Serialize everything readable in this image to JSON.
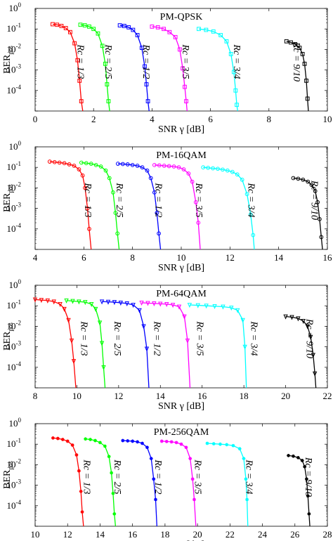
{
  "chart_data": [
    {
      "type": "line",
      "title": "PM-QPSK",
      "xlabel": "SNR γ [dB]",
      "ylabel": "BER",
      "ylabel_sub": "pos",
      "xlim": [
        0,
        10
      ],
      "ylim": [
        1e-05,
        1
      ],
      "yscale": "log",
      "xticks": [
        "0",
        "2",
        "4",
        "6",
        "8",
        "10"
      ],
      "marker": "square",
      "series": [
        {
          "name": "R_c = 1/3",
          "color": "#ff0000",
          "x": [
            0.6,
            0.75,
            0.9,
            1.05,
            1.2,
            1.35,
            1.45,
            1.52,
            1.58,
            1.63
          ],
          "y": [
            0.17,
            0.16,
            0.14,
            0.11,
            0.07,
            0.02,
            0.003,
            0.0003,
            3e-05,
            1e-05
          ]
        },
        {
          "name": "R_c = 2/5",
          "color": "#00ff00",
          "x": [
            1.55,
            1.7,
            1.85,
            2.0,
            2.15,
            2.3,
            2.4,
            2.46,
            2.51,
            2.55
          ],
          "y": [
            0.16,
            0.15,
            0.13,
            0.1,
            0.06,
            0.015,
            0.002,
            0.0002,
            3e-05,
            1e-05
          ]
        },
        {
          "name": "R_c = 1/2",
          "color": "#0000ff",
          "x": [
            2.9,
            3.05,
            3.2,
            3.35,
            3.5,
            3.65,
            3.75,
            3.81,
            3.86,
            3.9
          ],
          "y": [
            0.15,
            0.14,
            0.12,
            0.09,
            0.05,
            0.012,
            0.0015,
            0.0002,
            3e-05,
            1e-05
          ]
        },
        {
          "name": "R_c = 3/5",
          "color": "#ff00ff",
          "x": [
            4.0,
            4.2,
            4.4,
            4.6,
            4.8,
            4.95,
            5.05,
            5.12,
            5.17,
            5.2
          ],
          "y": [
            0.13,
            0.12,
            0.1,
            0.07,
            0.04,
            0.01,
            0.0012,
            0.00015,
            3e-05,
            1e-05
          ]
        },
        {
          "name": "R_c = 3/4",
          "color": "#00ffff",
          "x": [
            5.6,
            5.85,
            6.1,
            6.35,
            6.55,
            6.7,
            6.8,
            6.86,
            6.9,
            6.93
          ],
          "y": [
            0.1,
            0.09,
            0.075,
            0.05,
            0.025,
            0.006,
            0.0008,
            0.0001,
            2e-05,
            1e-05
          ]
        },
        {
          "name": "R_c = 9/10",
          "color": "#000000",
          "x": [
            8.6,
            8.75,
            8.9,
            9.05,
            9.15,
            9.22,
            9.28,
            9.32,
            9.35
          ],
          "y": [
            0.025,
            0.022,
            0.018,
            0.012,
            0.006,
            0.002,
            0.0003,
            4e-05,
            1e-05
          ]
        }
      ],
      "rate_labels": [
        "Rс = 1/3",
        "Rс = 2/5",
        "Rс = 1/2",
        "Rс = 3/5",
        "Rс = 3/4",
        "Rс = 9/10"
      ]
    },
    {
      "type": "line",
      "title": "PM-16QAM",
      "xlabel": "SNR γ [dB]",
      "ylabel": "BER",
      "ylabel_sub": "pos",
      "xlim": [
        4,
        16
      ],
      "ylim": [
        1e-05,
        1
      ],
      "yscale": "log",
      "xticks": [
        "4",
        "6",
        "8",
        "10",
        "12",
        "14",
        "16"
      ],
      "marker": "circle",
      "series": [
        {
          "name": "R_c = 1/3",
          "color": "#ff0000",
          "x": [
            4.6,
            4.8,
            5.0,
            5.2,
            5.4,
            5.6,
            5.8,
            5.95,
            6.05,
            6.15,
            6.22,
            6.3
          ],
          "y": [
            0.19,
            0.18,
            0.17,
            0.16,
            0.14,
            0.12,
            0.08,
            0.04,
            0.01,
            0.001,
            0.0001,
            1e-05
          ]
        },
        {
          "name": "R_c = 2/5",
          "color": "#00ff00",
          "x": [
            5.9,
            6.1,
            6.3,
            6.5,
            6.7,
            6.9,
            7.05,
            7.2,
            7.3,
            7.38,
            7.45
          ],
          "y": [
            0.17,
            0.16,
            0.15,
            0.13,
            0.11,
            0.07,
            0.03,
            0.006,
            0.0006,
            6e-05,
            1e-05
          ]
        },
        {
          "name": "R_c = 1/2",
          "color": "#0000ff",
          "x": [
            7.4,
            7.6,
            7.8,
            8.0,
            8.2,
            8.4,
            8.6,
            8.75,
            8.9,
            9.0,
            9.08,
            9.15
          ],
          "y": [
            0.15,
            0.145,
            0.14,
            0.13,
            0.12,
            0.1,
            0.07,
            0.03,
            0.006,
            0.0006,
            6e-05,
            1e-05
          ]
        },
        {
          "name": "R_c = 3/5",
          "color": "#ff00ff",
          "x": [
            8.9,
            9.1,
            9.3,
            9.5,
            9.7,
            9.9,
            10.1,
            10.3,
            10.45,
            10.6,
            10.7,
            10.78
          ],
          "y": [
            0.13,
            0.125,
            0.12,
            0.115,
            0.11,
            0.1,
            0.08,
            0.05,
            0.02,
            0.002,
            0.0002,
            1e-05
          ]
        },
        {
          "name": "R_c = 3/4",
          "color": "#00ffff",
          "x": [
            10.9,
            11.1,
            11.3,
            11.5,
            11.7,
            11.9,
            12.1,
            12.3,
            12.5,
            12.7,
            12.85,
            12.95,
            13.0
          ],
          "y": [
            0.1,
            0.095,
            0.09,
            0.085,
            0.078,
            0.07,
            0.06,
            0.045,
            0.025,
            0.005,
            0.0005,
            5e-05,
            1e-05
          ]
        },
        {
          "name": "R_c = 9/10",
          "color": "#000000",
          "x": [
            14.6,
            14.8,
            15.0,
            15.2,
            15.35,
            15.5,
            15.6,
            15.68,
            15.75,
            15.8
          ],
          "y": [
            0.03,
            0.028,
            0.025,
            0.02,
            0.014,
            0.007,
            0.002,
            0.0003,
            4e-05,
            1e-05
          ]
        }
      ],
      "rate_labels": [
        "Rс = 1/3",
        "Rс = 2/5",
        "Rс = 1/2",
        "Rс = 3/5",
        "Rс = 3/4",
        "Rс = 9/10"
      ]
    },
    {
      "type": "line",
      "title": "PM-64QAM",
      "xlabel": "SNR γ [dB]",
      "ylabel": "BER",
      "ylabel_sub": "pos",
      "xlim": [
        8,
        22
      ],
      "ylim": [
        1e-05,
        1
      ],
      "yscale": "log",
      "xticks": [
        "8",
        "10",
        "12",
        "14",
        "16",
        "18",
        "20",
        "22"
      ],
      "marker": "triangle-down",
      "series": [
        {
          "name": "R_c = 1/3",
          "color": "#ff0000",
          "x": [
            8.0,
            8.3,
            8.6,
            8.9,
            9.2,
            9.4,
            9.6,
            9.75,
            9.85,
            9.95
          ],
          "y": [
            0.2,
            0.19,
            0.18,
            0.16,
            0.12,
            0.07,
            0.02,
            0.002,
            0.0002,
            1e-05
          ]
        },
        {
          "name": "R_c = 2/5",
          "color": "#00ff00",
          "x": [
            9.5,
            9.8,
            10.1,
            10.4,
            10.7,
            10.9,
            11.1,
            11.2,
            11.28,
            11.35
          ],
          "y": [
            0.18,
            0.17,
            0.16,
            0.15,
            0.12,
            0.07,
            0.015,
            0.0015,
            0.0001,
            1e-05
          ]
        },
        {
          "name": "R_c = 1/2",
          "color": "#0000ff",
          "x": [
            11.2,
            11.5,
            11.8,
            12.1,
            12.4,
            12.7,
            13.0,
            13.2,
            13.35,
            13.45
          ],
          "y": [
            0.16,
            0.155,
            0.15,
            0.14,
            0.13,
            0.11,
            0.06,
            0.01,
            0.0008,
            1e-05
          ]
        },
        {
          "name": "R_c = 3/5",
          "color": "#ff00ff",
          "x": [
            13.1,
            13.4,
            13.7,
            14.0,
            14.3,
            14.6,
            14.9,
            15.15,
            15.3,
            15.42
          ],
          "y": [
            0.14,
            0.135,
            0.13,
            0.125,
            0.12,
            0.11,
            0.09,
            0.03,
            0.002,
            1e-05
          ]
        },
        {
          "name": "R_c = 3/4",
          "color": "#00ffff",
          "x": [
            15.4,
            15.8,
            16.2,
            16.6,
            17.0,
            17.4,
            17.7,
            17.95,
            18.05,
            18.12
          ],
          "y": [
            0.11,
            0.105,
            0.1,
            0.095,
            0.09,
            0.08,
            0.06,
            0.02,
            0.001,
            1e-05
          ]
        },
        {
          "name": "R_c = 9/10",
          "color": "#000000",
          "x": [
            20.0,
            20.3,
            20.6,
            20.85,
            21.05,
            21.2,
            21.32,
            21.4,
            21.45
          ],
          "y": [
            0.03,
            0.028,
            0.024,
            0.018,
            0.01,
            0.003,
            0.0004,
            5e-05,
            1e-05
          ]
        }
      ],
      "rate_labels": [
        "Rс = 1/3",
        "Rс = 2/5",
        "Rс = 1/2",
        "Rс = 3/5",
        "Rс = 3/4",
        "Rс = 9/10"
      ]
    },
    {
      "type": "line",
      "title": "PM-256QAM",
      "xlabel": "SNR γ [dB]",
      "ylabel": "BER",
      "ylabel_sub": "pos",
      "xlim": [
        10,
        28
      ],
      "ylim": [
        1e-05,
        1
      ],
      "yscale": "log",
      "xticks": [
        "10",
        "12",
        "14",
        "16",
        "18",
        "20",
        "22",
        "24",
        "26",
        "28"
      ],
      "marker": "asterisk",
      "series": [
        {
          "name": "R_c = 1/3",
          "color": "#ff0000",
          "x": [
            11.1,
            11.4,
            11.7,
            12.0,
            12.3,
            12.55,
            12.7,
            12.82,
            12.9,
            12.98
          ],
          "y": [
            0.2,
            0.19,
            0.17,
            0.14,
            0.09,
            0.03,
            0.005,
            0.0005,
            5e-05,
            1e-05
          ]
        },
        {
          "name": "R_c = 2/5",
          "color": "#00ff00",
          "x": [
            13.1,
            13.4,
            13.7,
            14.0,
            14.3,
            14.55,
            14.7,
            14.8,
            14.88,
            14.95
          ],
          "y": [
            0.18,
            0.17,
            0.15,
            0.12,
            0.08,
            0.025,
            0.004,
            0.0004,
            4e-05,
            1e-05
          ]
        },
        {
          "name": "R_c = 1/2",
          "color": "#0000ff",
          "x": [
            15.4,
            15.7,
            16.0,
            16.3,
            16.6,
            16.9,
            17.15,
            17.3,
            17.42,
            17.5
          ],
          "y": [
            0.15,
            0.145,
            0.14,
            0.13,
            0.11,
            0.07,
            0.02,
            0.002,
            0.0002,
            1e-05
          ]
        },
        {
          "name": "R_c = 3/5",
          "color": "#ff00ff",
          "x": [
            17.8,
            18.1,
            18.4,
            18.7,
            19.0,
            19.3,
            19.55,
            19.7,
            19.8,
            19.9
          ],
          "y": [
            0.14,
            0.135,
            0.13,
            0.12,
            0.1,
            0.07,
            0.02,
            0.002,
            0.0002,
            1e-05
          ]
        },
        {
          "name": "R_c = 3/4",
          "color": "#00ffff",
          "x": [
            20.6,
            21.0,
            21.4,
            21.8,
            22.2,
            22.6,
            22.85,
            22.98,
            23.05,
            23.1
          ],
          "y": [
            0.11,
            0.105,
            0.1,
            0.095,
            0.085,
            0.06,
            0.02,
            0.002,
            0.0002,
            1e-05
          ]
        },
        {
          "name": "R_c = 9/10",
          "color": "#000000",
          "x": [
            25.6,
            25.9,
            26.2,
            26.45,
            26.6,
            26.72,
            26.8,
            26.87,
            26.92
          ],
          "y": [
            0.028,
            0.026,
            0.022,
            0.016,
            0.008,
            0.002,
            0.0003,
            4e-05,
            1e-05
          ]
        }
      ],
      "rate_labels": [
        "Rс = 1/3",
        "Rс = 2/5",
        "Rс = 1/2",
        "Rс = 3/5",
        "Rс = 3/4",
        "Rс = 9/10"
      ]
    }
  ]
}
